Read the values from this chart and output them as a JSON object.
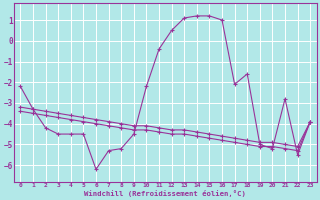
{
  "xlabel": "Windchill (Refroidissement éolien,°C)",
  "bg_color": "#b2e8e8",
  "grid_color": "#ffffff",
  "line_color": "#993399",
  "x_ticks": [
    0,
    1,
    2,
    3,
    4,
    5,
    6,
    7,
    8,
    9,
    10,
    11,
    12,
    13,
    14,
    15,
    16,
    17,
    18,
    19,
    20,
    21,
    22,
    23
  ],
  "y_ticks": [
    1,
    0,
    -1,
    -2,
    -3,
    -4,
    -5,
    -6
  ],
  "ylim": [
    -6.8,
    1.8
  ],
  "xlim": [
    -0.5,
    23.5
  ],
  "series": [
    [
      -2.2,
      -3.3,
      -4.2,
      -4.5,
      -4.5,
      -4.5,
      -6.2,
      -5.3,
      -5.2,
      -4.5,
      -2.2,
      -0.4,
      0.5,
      1.1,
      1.2,
      1.2,
      1.0,
      -2.1,
      -1.6,
      -5.0,
      -5.2,
      -2.8,
      -5.5,
      -3.9
    ],
    [
      -3.4,
      -3.5,
      -3.6,
      -3.7,
      -3.8,
      -3.9,
      -4.0,
      -4.1,
      -4.2,
      -4.3,
      -4.3,
      -4.4,
      -4.5,
      -4.5,
      -4.6,
      -4.7,
      -4.8,
      -4.9,
      -5.0,
      -5.1,
      -5.1,
      -5.2,
      -5.3,
      -3.9
    ],
    [
      -3.2,
      -3.3,
      -3.4,
      -3.5,
      -3.6,
      -3.7,
      -3.8,
      -3.9,
      -4.0,
      -4.1,
      -4.1,
      -4.2,
      -4.3,
      -4.3,
      -4.4,
      -4.5,
      -4.6,
      -4.7,
      -4.8,
      -4.9,
      -4.9,
      -5.0,
      -5.1,
      -3.9
    ]
  ]
}
